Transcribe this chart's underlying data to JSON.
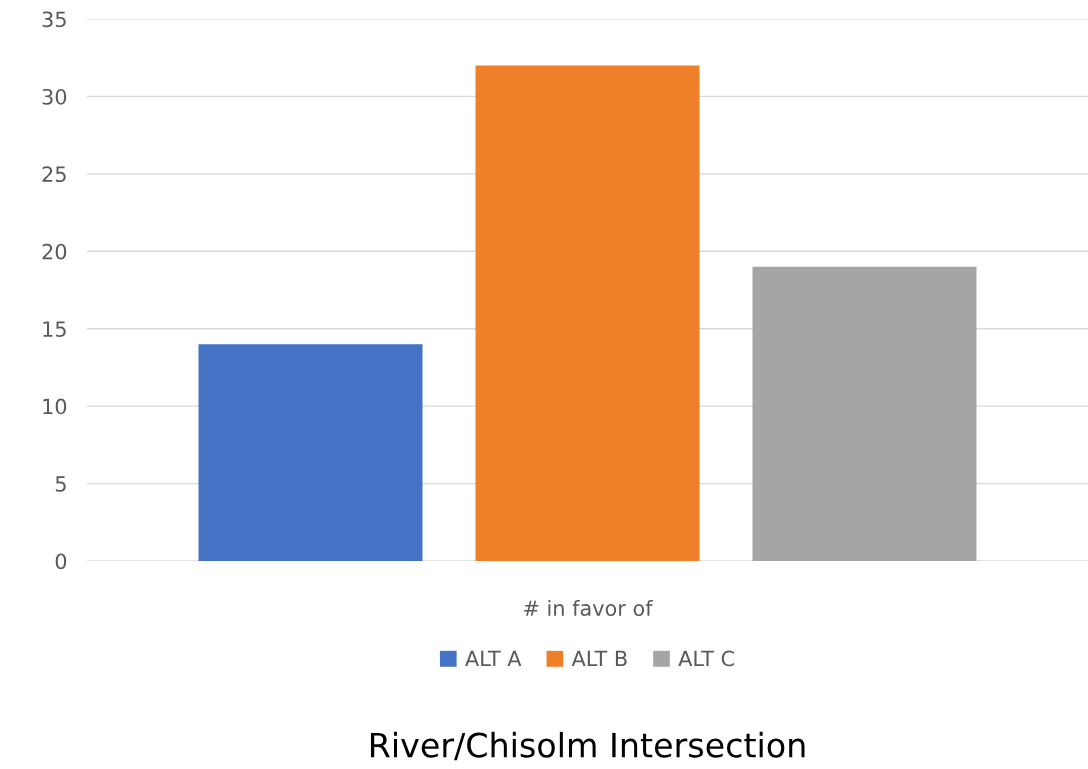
{
  "chart_data": {
    "type": "bar",
    "title": "River/Chisolm Intersection",
    "categories": [
      "# in favor of"
    ],
    "series": [
      {
        "name": "ALT A",
        "color": "#4472c4",
        "values": [
          14
        ]
      },
      {
        "name": "ALT B",
        "color": "#f07f2a",
        "values": [
          32
        ]
      },
      {
        "name": "ALT C",
        "color": "#a5a5a5",
        "values": [
          19
        ]
      }
    ],
    "ylim": [
      0,
      35
    ],
    "yticks": [
      0,
      5,
      10,
      15,
      20,
      25,
      30,
      35
    ],
    "grid": "y",
    "legend": "bottom"
  }
}
